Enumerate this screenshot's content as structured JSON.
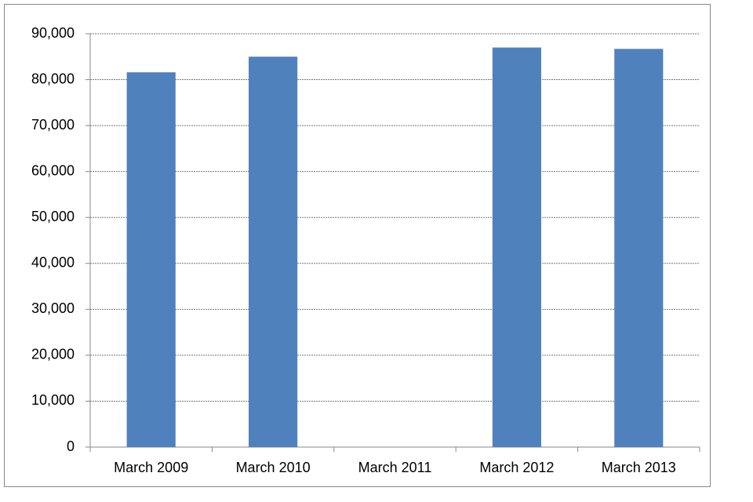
{
  "chart_data": {
    "type": "bar",
    "categories": [
      "March 2009",
      "March 2010",
      "March 2011",
      "March 2012",
      "March 2013"
    ],
    "values": [
      81600,
      85000,
      null,
      87000,
      86700
    ],
    "color": "#4f81bd",
    "ylim": [
      0,
      90000
    ],
    "yticks": [
      0,
      {
        "value": 10000,
        "label": "10,000"
      },
      {
        "value": 20000,
        "label": "20,000"
      },
      {
        "value": 30000,
        "label": "30,000"
      },
      {
        "value": 40000,
        "label": "40,000"
      },
      {
        "value": 50000,
        "label": "50,000"
      },
      {
        "value": 60000,
        "label": "60,000"
      },
      {
        "value": 70000,
        "label": "70,000"
      },
      {
        "value": 80000,
        "label": "80,000"
      },
      {
        "value": 90000,
        "label": "90,000"
      }
    ],
    "grid": true
  }
}
